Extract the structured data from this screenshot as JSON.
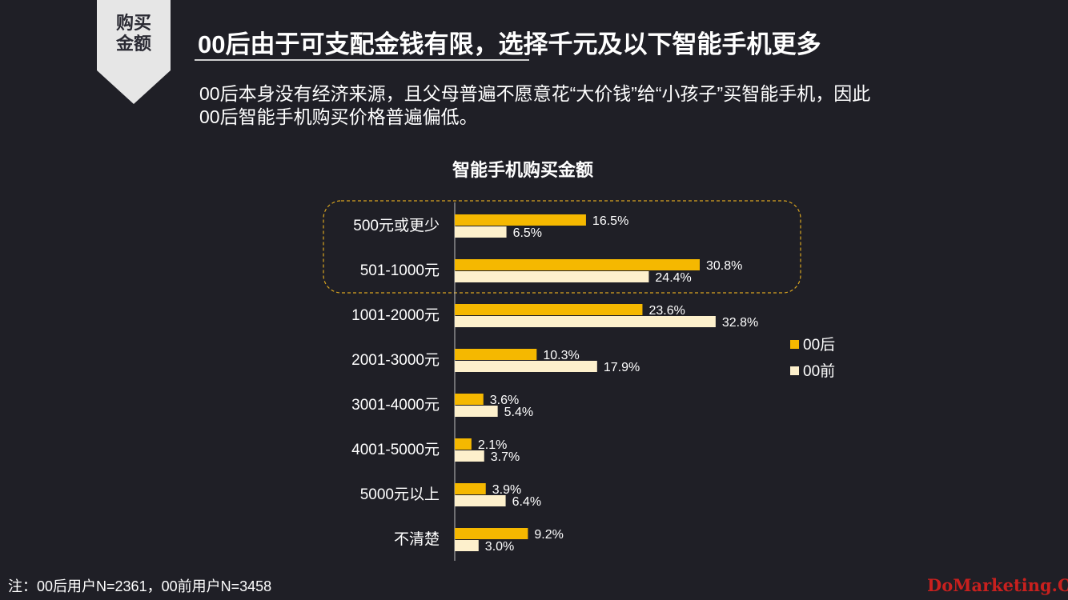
{
  "badge": {
    "text": "购买\n金额",
    "color": "#e6e6e6"
  },
  "header": {
    "title": "00后由于可支配金钱有限，选择千元及以下智能手机更多",
    "subtitle_line1": "00后本身没有经济来源，且父母普遍不愿意花“大价钱”给“小孩子”买智能手机，因此",
    "subtitle_line2": "00后智能手机购买价格普遍偏低。"
  },
  "chart_data": {
    "type": "bar",
    "orientation": "horizontal",
    "title": "智能手机购买金额",
    "categories": [
      "500元或更少",
      "501-1000元",
      "1001-2000元",
      "2001-3000元",
      "3001-4000元",
      "4001-5000元",
      "5000元以上",
      "不清楚"
    ],
    "series": [
      {
        "name": "00后",
        "values": [
          16.5,
          30.8,
          23.6,
          10.3,
          3.6,
          2.1,
          3.9,
          9.2
        ],
        "color": "#f5b800"
      },
      {
        "name": "00前",
        "values": [
          6.5,
          24.4,
          32.8,
          17.9,
          5.4,
          3.7,
          6.4,
          3.0
        ],
        "color": "#fdf0cc"
      }
    ],
    "value_suffix": "%",
    "xlim": [
      0,
      35
    ],
    "grid": false,
    "legend_position": "right",
    "highlight": {
      "categories": [
        "500元或更少",
        "501-1000元"
      ],
      "color": "#d9a520",
      "style": "dashed"
    }
  },
  "footnote": "注：00后用户N=2361，00前用户N=3458",
  "watermark": "DoMarketing.Org"
}
